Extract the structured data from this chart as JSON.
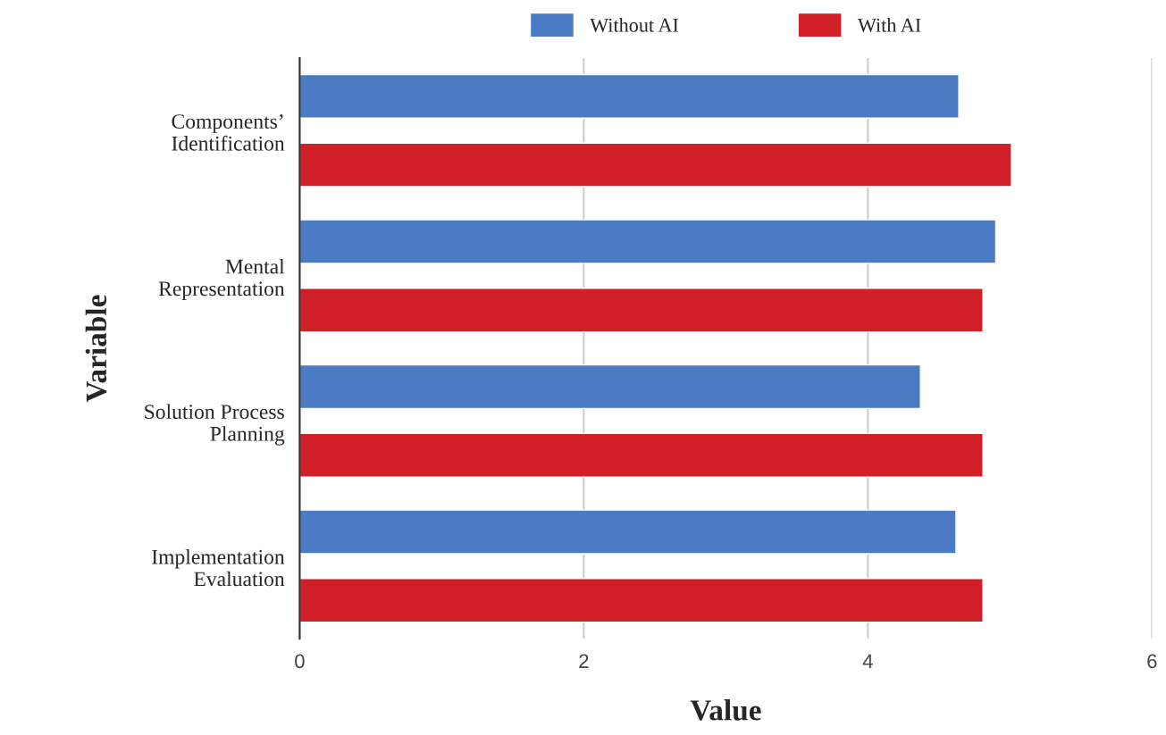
{
  "chart_data": {
    "type": "bar",
    "orientation": "horizontal",
    "xlabel": "Value",
    "ylabel": "Variable",
    "categories": [
      "Components’\nIdentification",
      "Mental\nRepresentation",
      "Solution Process\nPlanning",
      "Implementation\nEvaluation"
    ],
    "series": [
      {
        "name": "Without AI",
        "color": "#4a7bc3",
        "values": [
          4.64,
          4.9,
          4.37,
          4.62
        ]
      },
      {
        "name": "With AI",
        "color": "#d11f28",
        "values": [
          5.01,
          4.81,
          4.81,
          4.81
        ]
      }
    ],
    "xlim": [
      0,
      6
    ],
    "xticks": [
      0,
      2,
      4,
      6
    ],
    "grid": "x",
    "legend": "top"
  }
}
